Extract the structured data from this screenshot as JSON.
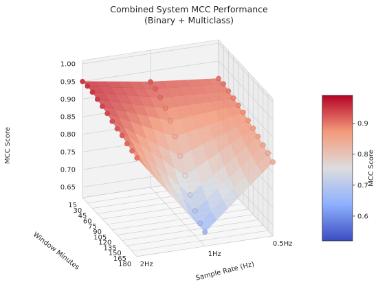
{
  "chart_data": {
    "type": "surface3d",
    "title": "Combined System MCC Performance",
    "subtitle": "(Binary + Multiclass)",
    "xlabel": "Sample Rate (Hz)",
    "ylabel": "Window Minutes",
    "zlabel": "MCC Score",
    "x_ticks": [
      "2Hz",
      "1Hz",
      "0.5Hz"
    ],
    "y_ticks": [
      15,
      30,
      45,
      60,
      75,
      90,
      105,
      120,
      135,
      150,
      165,
      180
    ],
    "z_ticks": [
      0.65,
      0.7,
      0.75,
      0.8,
      0.85,
      0.9,
      0.95,
      1.0
    ],
    "zlim": [
      0.62,
      1.01
    ],
    "colorbar": {
      "label": "MCC Score",
      "ticks": [
        0.6,
        0.7,
        0.8,
        0.9
      ],
      "range": [
        0.52,
        0.99
      ],
      "colormap": "coolwarm",
      "low_color": "#3b4cc0",
      "mid_color": "#dddddd",
      "high_color": "#b40426"
    },
    "grid": true,
    "series": [
      {
        "x": "2Hz",
        "windows": [
          15,
          30,
          45,
          60,
          75,
          90,
          105,
          120,
          135,
          150,
          165,
          180
        ],
        "values": [
          0.95,
          0.952,
          0.95,
          0.945,
          0.94,
          0.935,
          0.928,
          0.922,
          0.918,
          0.91,
          0.905,
          0.9
        ]
      },
      {
        "x": "1Hz",
        "windows": [
          15,
          30,
          45,
          60,
          75,
          90,
          105,
          120,
          135,
          150,
          165,
          180
        ],
        "values": [
          0.92,
          0.915,
          0.905,
          0.89,
          0.87,
          0.84,
          0.8,
          0.76,
          0.72,
          0.69,
          0.67,
          0.66
        ]
      },
      {
        "x": "0.5Hz",
        "windows": [
          15,
          30,
          45,
          60,
          75,
          90,
          105,
          120,
          135,
          150,
          165,
          180
        ],
        "values": [
          0.9,
          0.9,
          0.895,
          0.89,
          0.885,
          0.88,
          0.872,
          0.865,
          0.857,
          0.848,
          0.84,
          0.83
        ]
      }
    ]
  }
}
